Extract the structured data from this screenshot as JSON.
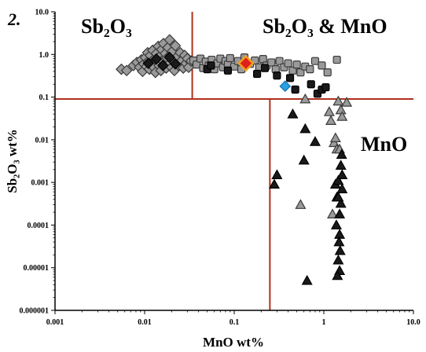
{
  "chart_data": {
    "type": "scatter",
    "panel_label": "2.",
    "xlabel": "MnO wt%",
    "ylabel": "Sb₂O₃ wt%",
    "x_scale": "log",
    "y_scale": "log",
    "xlim": [
      0.001,
      10
    ],
    "ylim": [
      1e-06,
      10
    ],
    "x_tick_labels": [
      "0.001",
      "0.01",
      "0.1",
      "1",
      "10.0"
    ],
    "y_tick_labels": [
      "0.000001",
      "0.00001",
      "0.0001",
      "0.001",
      "0.01",
      "0.1",
      "1.0",
      "10.0"
    ],
    "grid": false,
    "region_labels": [
      "Sb₂O₃",
      "Sb₂O₃ & MnO",
      "MnO"
    ],
    "colors": {
      "threshold_lines": "#b0301c",
      "grey_fill": "#9a9a9a",
      "black_fill": "#1a1a1a",
      "blue_fill": "#2aa0e0",
      "red_fill": "#e0201a",
      "orange_stroke": "#f0a020"
    },
    "threshold_lines": [
      {
        "orientation": "horizontal",
        "y": 0.09
      },
      {
        "orientation": "vertical",
        "x": 0.034,
        "y_range": [
          0.09,
          10
        ]
      },
      {
        "orientation": "vertical",
        "x": 0.25,
        "y_range": [
          1e-06,
          0.09
        ]
      }
    ],
    "series": [
      {
        "marker": "diamond",
        "fill": "grey",
        "points": [
          [
            0.0055,
            0.45
          ],
          [
            0.0063,
            0.42
          ],
          [
            0.0075,
            0.55
          ],
          [
            0.0082,
            0.65
          ],
          [
            0.0088,
            0.5
          ],
          [
            0.0092,
            0.75
          ],
          [
            0.0095,
            0.4
          ],
          [
            0.0098,
            0.6
          ],
          [
            0.0102,
            0.85
          ],
          [
            0.0105,
            0.52
          ],
          [
            0.0108,
            1.1
          ],
          [
            0.011,
            0.7
          ],
          [
            0.0113,
            0.45
          ],
          [
            0.0116,
            0.95
          ],
          [
            0.012,
            0.62
          ],
          [
            0.0123,
            1.25
          ],
          [
            0.0126,
            0.5
          ],
          [
            0.0129,
            0.8
          ],
          [
            0.0132,
            0.38
          ],
          [
            0.0135,
            1.05
          ],
          [
            0.0138,
            0.68
          ],
          [
            0.0142,
            1.55
          ],
          [
            0.0145,
            0.55
          ],
          [
            0.0148,
            0.9
          ],
          [
            0.0152,
            0.42
          ],
          [
            0.0155,
            1.3
          ],
          [
            0.0158,
            0.72
          ],
          [
            0.0162,
            1.8
          ],
          [
            0.0166,
            0.6
          ],
          [
            0.017,
            1.05
          ],
          [
            0.0174,
            0.48
          ],
          [
            0.0178,
            0.82
          ],
          [
            0.0182,
            1.45
          ],
          [
            0.0186,
            0.58
          ],
          [
            0.019,
            2.2
          ],
          [
            0.0195,
            0.92
          ],
          [
            0.02,
            0.5
          ],
          [
            0.0205,
            1.2
          ],
          [
            0.021,
            0.7
          ],
          [
            0.0215,
            0.42
          ],
          [
            0.022,
            1.6
          ],
          [
            0.023,
            0.88
          ],
          [
            0.024,
            0.55
          ],
          [
            0.025,
            1.1
          ],
          [
            0.026,
            0.72
          ],
          [
            0.027,
            0.48
          ],
          [
            0.028,
            0.95
          ],
          [
            0.029,
            0.62
          ],
          [
            0.03,
            0.8
          ],
          [
            0.031,
            0.5
          ],
          [
            0.033,
            0.7
          ]
        ]
      },
      {
        "marker": "diamond",
        "fill": "black",
        "points": [
          [
            0.011,
            0.62
          ],
          [
            0.0135,
            0.78
          ],
          [
            0.016,
            0.55
          ],
          [
            0.019,
            0.85
          ],
          [
            0.022,
            0.6
          ]
        ]
      },
      {
        "marker": "square",
        "fill": "grey",
        "points": [
          [
            0.035,
            0.72
          ],
          [
            0.038,
            0.58
          ],
          [
            0.042,
            0.8
          ],
          [
            0.045,
            0.48
          ],
          [
            0.048,
            0.68
          ],
          [
            0.052,
            0.55
          ],
          [
            0.056,
            0.75
          ],
          [
            0.06,
            0.45
          ],
          [
            0.065,
            0.62
          ],
          [
            0.07,
            0.8
          ],
          [
            0.075,
            0.5
          ],
          [
            0.08,
            0.7
          ],
          [
            0.085,
            0.58
          ],
          [
            0.09,
            0.82
          ],
          [
            0.1,
            0.52
          ],
          [
            0.11,
            0.7
          ],
          [
            0.12,
            0.45
          ],
          [
            0.13,
            0.85
          ],
          [
            0.15,
            0.6
          ],
          [
            0.17,
            0.72
          ],
          [
            0.19,
            0.5
          ],
          [
            0.21,
            0.78
          ],
          [
            0.23,
            0.55
          ],
          [
            0.26,
            0.65
          ],
          [
            0.29,
            0.45
          ],
          [
            0.32,
            0.7
          ],
          [
            0.36,
            0.5
          ],
          [
            0.4,
            0.62
          ],
          [
            0.45,
            0.42
          ],
          [
            0.5,
            0.58
          ],
          [
            0.55,
            0.38
          ],
          [
            0.62,
            0.52
          ],
          [
            0.7,
            0.45
          ],
          [
            0.8,
            0.7
          ],
          [
            0.95,
            0.55
          ],
          [
            1.1,
            0.38
          ],
          [
            1.4,
            0.75
          ]
        ]
      },
      {
        "marker": "square",
        "fill": "black",
        "points": [
          [
            0.05,
            0.45
          ],
          [
            0.055,
            0.55
          ],
          [
            0.085,
            0.42
          ],
          [
            0.18,
            0.35
          ],
          [
            0.22,
            0.48
          ],
          [
            0.3,
            0.32
          ],
          [
            0.42,
            0.28
          ],
          [
            0.48,
            0.15
          ],
          [
            0.85,
            0.12
          ],
          [
            0.95,
            0.15
          ],
          [
            1.05,
            0.17
          ],
          [
            0.72,
            0.2
          ]
        ]
      },
      {
        "marker": "triangle",
        "fill": "grey",
        "points": [
          [
            0.62,
            0.09
          ],
          [
            1.15,
            0.045
          ],
          [
            1.2,
            0.028
          ],
          [
            1.3,
            0.0085
          ],
          [
            1.35,
            0.011
          ],
          [
            1.4,
            0.006
          ],
          [
            1.5,
            0.006
          ],
          [
            1.45,
            0.08
          ],
          [
            1.55,
            0.05
          ],
          [
            1.6,
            0.035
          ],
          [
            1.8,
            0.075
          ],
          [
            1.25,
            0.00018
          ],
          [
            0.55,
            0.0003
          ]
        ]
      },
      {
        "marker": "triangle",
        "fill": "black",
        "points": [
          [
            0.3,
            0.0015
          ],
          [
            0.28,
            0.0009
          ],
          [
            0.45,
            0.04
          ],
          [
            0.62,
            0.018
          ],
          [
            0.6,
            0.0033
          ],
          [
            0.65,
            5e-06
          ],
          [
            0.8,
            0.009
          ],
          [
            1.35,
            0.0009
          ],
          [
            1.4,
            0.00045
          ],
          [
            1.45,
            0.0011
          ],
          [
            1.5,
            0.00018
          ],
          [
            1.55,
            0.00032
          ],
          [
            1.38,
            0.0001
          ],
          [
            1.5,
            6e-05
          ],
          [
            1.48,
            4e-05
          ],
          [
            1.52,
            2.5e-05
          ],
          [
            1.45,
            1.5e-05
          ],
          [
            1.5,
            8.5e-06
          ],
          [
            1.42,
            6.5e-06
          ],
          [
            1.45,
            0.00045
          ],
          [
            1.58,
            0.0045
          ],
          [
            1.55,
            0.0025
          ],
          [
            1.6,
            0.0015
          ],
          [
            1.6,
            0.0007
          ]
        ]
      },
      {
        "marker": "diamond",
        "fill": "blue",
        "points": [
          [
            0.37,
            0.18
          ]
        ]
      },
      {
        "marker": "diamond",
        "fill": "red",
        "points": [
          [
            0.135,
            0.62
          ]
        ]
      }
    ]
  }
}
